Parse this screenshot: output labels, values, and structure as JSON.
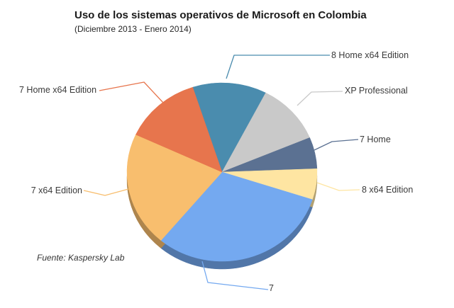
{
  "title": "Uso de los sistemas operativos de Microsoft en Colombia",
  "subtitle": "(Diciembre 2013 - Enero 2014)",
  "source": "Fuente: Kaspersky Lab",
  "chart_data": {
    "type": "pie",
    "style": "3d-pie",
    "title": "Uso de los sistemas operativos de Microsoft en Colombia",
    "subtitle": "(Diciembre 2013 - Enero 2014)",
    "source": "Fuente: Kaspersky Lab",
    "unit": "percent-share (estimated from slice angles, no data labels shown)",
    "start_angle_deg": 108,
    "direction": "clockwise",
    "legend_position": "callout-labels",
    "series": [
      {
        "name": "8 Home x64 Edition",
        "value": 12.6,
        "color": "#4A8CAE"
      },
      {
        "name": "XP Professional",
        "value": 11.1,
        "color": "#C9C9C9"
      },
      {
        "name": "7 Home",
        "value": 5.7,
        "color": "#5B7192"
      },
      {
        "name": "8 x64 Edition",
        "value": 5.6,
        "color": "#FEE5A2"
      },
      {
        "name": "7",
        "value": 31.1,
        "color": "#74A9F0"
      },
      {
        "name": "7 x64 Edition",
        "value": 20.8,
        "color": "#F8BE6E"
      },
      {
        "name": "7 Home x64 Edition",
        "value": 13.1,
        "color": "#E7754D"
      }
    ]
  }
}
